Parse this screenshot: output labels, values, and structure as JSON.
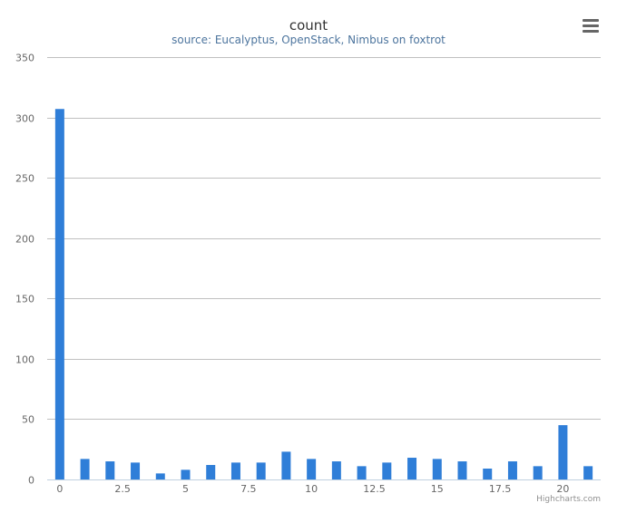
{
  "chart_data": {
    "type": "bar",
    "title": "count",
    "subtitle": "source: Eucalyptus, OpenStack, Nimbus on foxtrot",
    "xlabel": "",
    "ylabel": "",
    "xlim": [
      -0.5,
      21.5
    ],
    "ylim": [
      0,
      350
    ],
    "x_ticks": [
      0,
      2.5,
      5,
      7.5,
      10,
      12.5,
      15,
      17.5,
      20
    ],
    "x_tick_labels": [
      "0",
      "2.5",
      "5",
      "7.5",
      "10",
      "12.5",
      "15",
      "17.5",
      "20"
    ],
    "y_ticks": [
      0,
      50,
      100,
      150,
      200,
      250,
      300,
      350
    ],
    "y_tick_labels": [
      "0",
      "50",
      "100",
      "150",
      "200",
      "250",
      "300",
      "350"
    ],
    "grid": true,
    "legend": "none",
    "color": "#2f7ed8",
    "x": [
      0,
      1,
      2,
      3,
      4,
      5,
      6,
      7,
      8,
      9,
      10,
      11,
      12,
      13,
      14,
      15,
      16,
      17,
      18,
      19,
      20,
      21
    ],
    "values": [
      307,
      17,
      15,
      14,
      5,
      8,
      12,
      14,
      14,
      23,
      17,
      15,
      11,
      14,
      18,
      17,
      15,
      9,
      15,
      11,
      45,
      11
    ]
  },
  "credits": "Highcharts.com",
  "menu_icon": "hamburger-menu-icon"
}
